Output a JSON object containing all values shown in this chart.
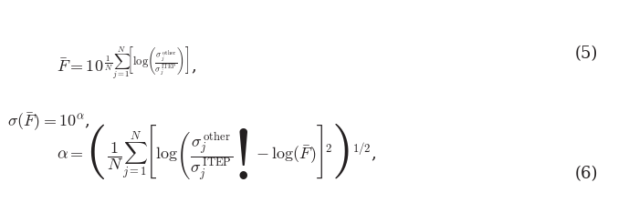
{
  "eq1": "$\\bar{F} = 10^{\\frac{1}{N}\\sum_{j=1}^{N}\\left[\\log\\left(\\frac{\\sigma_j^{\\mathrm{other}}}{\\sigma_j^{\\mathrm{ITEP}}}\\right)\\right]}$,",
  "eq2": "$\\sigma(\\bar{F}) = 10^{\\alpha}$,",
  "eq3": "$\\alpha = \\left\\{\\dfrac{1}{N}\\sum_{j=1}^{N}\\left[\\log\\left(\\dfrac{\\sigma_j^{\\mathrm{other}}}{\\sigma_j^{\\mathrm{ITEP}}}\\right) - \\log(\\bar{F})\\right]^2\\right\\}^{1/2}$,",
  "eq_num1": "(5)",
  "eq_num2": "(6)",
  "text_color": "#231f20",
  "bg_color": "#ffffff",
  "fontsize_main": 13,
  "fontsize_num": 13
}
